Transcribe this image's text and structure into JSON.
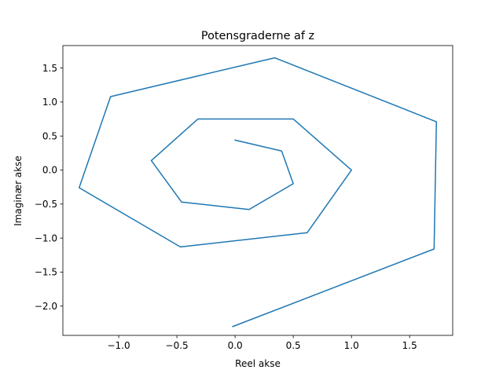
{
  "chart_data": {
    "type": "line",
    "title": "Potensgraderne af z",
    "xlabel": "Reel akse",
    "ylabel": "Imaginær akse",
    "xlim": [
      -1.48,
      1.87
    ],
    "ylim": [
      -2.43,
      1.83
    ],
    "xticks": [
      -1.0,
      -0.5,
      0.0,
      0.5,
      1.0,
      1.5
    ],
    "xtick_labels": [
      "−1.0",
      "−0.5",
      "0.0",
      "0.5",
      "1.0",
      "1.5"
    ],
    "yticks": [
      -2.0,
      -1.5,
      -1.0,
      -0.5,
      0.0,
      0.5,
      1.0,
      1.5
    ],
    "ytick_labels": [
      "−2.0",
      "−1.5",
      "−1.0",
      "−0.5",
      "0.0",
      "0.5",
      "1.0",
      "1.5"
    ],
    "grid": false,
    "color": "#1f77b4",
    "series": [
      {
        "x": [
          0.0,
          0.4,
          0.5,
          0.12,
          -0.46,
          -0.72,
          -0.32,
          0.5,
          1.0,
          0.62,
          -0.47,
          -1.34,
          -1.07,
          0.34,
          1.73,
          1.71,
          -0.02
        ],
        "y": [
          0.44,
          0.28,
          -0.2,
          -0.58,
          -0.47,
          0.14,
          0.75,
          0.75,
          0.0,
          -0.92,
          -1.13,
          -0.26,
          1.08,
          1.65,
          0.71,
          -1.16,
          -2.3
        ]
      }
    ]
  }
}
